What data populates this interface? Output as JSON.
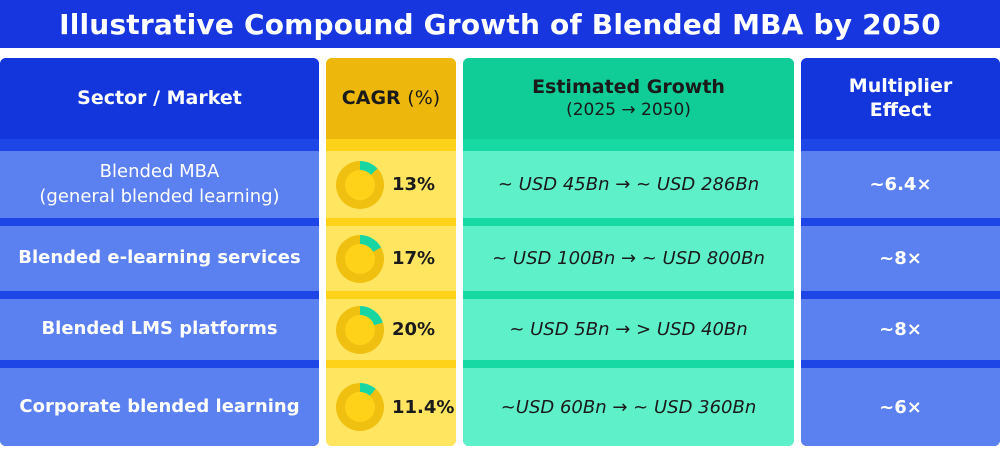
{
  "title": "Illustrative Compound Growth of Blended MBA by 2050",
  "headers": {
    "sector": "Sector / Market",
    "cagr_main": "CAGR",
    "cagr_unit": "(%)",
    "growth_main": "Estimated Growth",
    "growth_sub": "(2025 → 2050)",
    "multiplier_line1": "Multiplier",
    "multiplier_line2": "Effect"
  },
  "rows": [
    {
      "sector_line1": "Blended MBA",
      "sector_line2": "(general blended learning)",
      "cagr": "13%",
      "cagr_value": 13,
      "growth": "~ USD 45Bn → ~ USD 286Bn",
      "multiplier": "~6.4×"
    },
    {
      "sector": "Blended e-learning services",
      "cagr": "17%",
      "cagr_value": 17,
      "growth": "~ USD 100Bn → ~ USD 800Bn",
      "multiplier": "~8×"
    },
    {
      "sector": "Blended LMS platforms",
      "cagr": "20%",
      "cagr_value": 20,
      "growth": "~ USD 5Bn → > USD 40Bn",
      "multiplier": "~8×"
    },
    {
      "sector": "Corporate blended learning",
      "cagr": "11.4%",
      "cagr_value": 11.4,
      "growth": "~USD 60Bn → ~ USD 360Bn",
      "multiplier": "~6×"
    }
  ],
  "colors": {
    "title_bg": "#1736e0",
    "blue_header": "#1235dc",
    "blue_cell": "#5b80f0",
    "yellow_header": "#edb80b",
    "yellow_cell": "#ffe560",
    "teal_header": "#10cc97",
    "teal_cell": "#5ef0c8",
    "donut_accent": "#18d6a2",
    "donut_base": "#f0c010"
  },
  "icons": {
    "cagr_indicator": "donut-progress-icon"
  }
}
